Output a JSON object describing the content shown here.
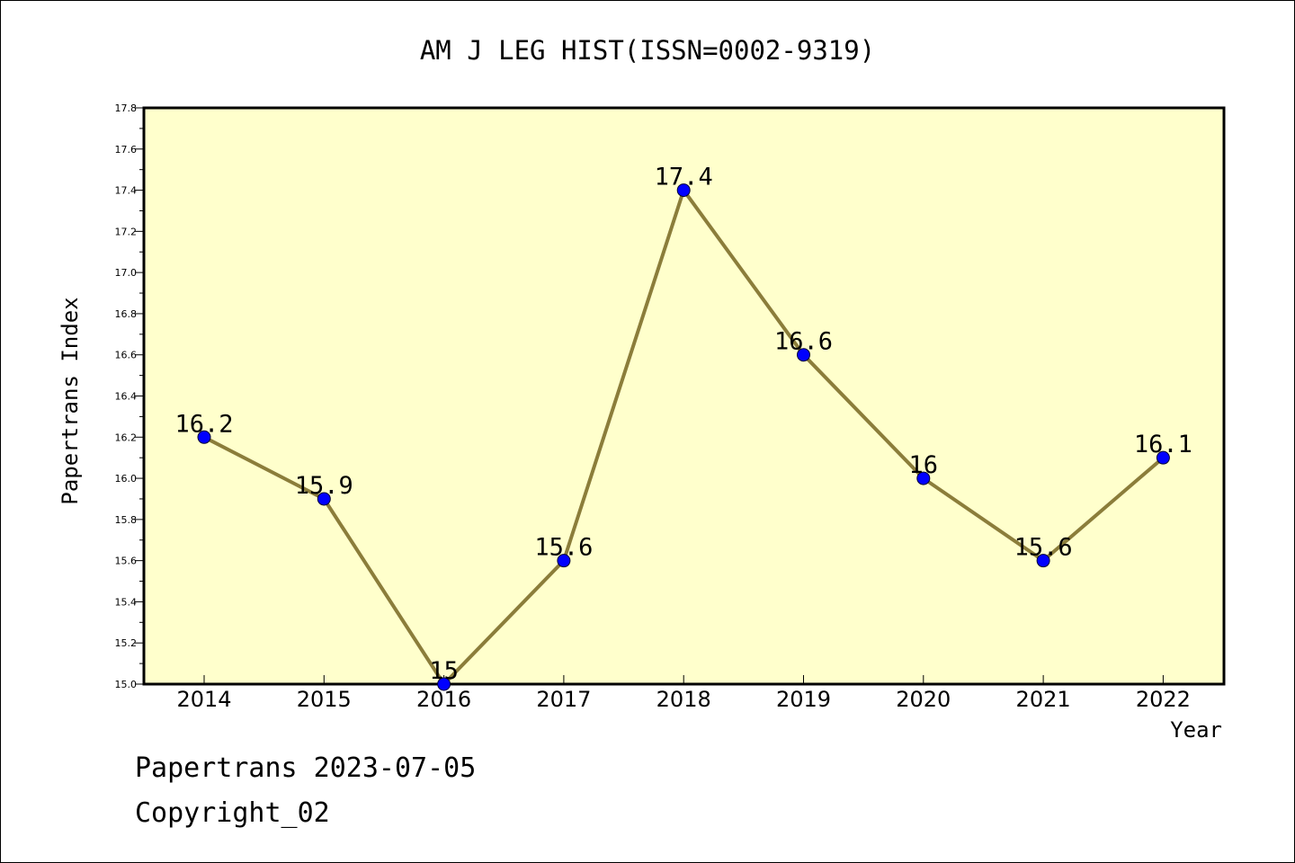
{
  "chart_data": {
    "type": "line",
    "title": "AM J LEG HIST(ISSN=0002-9319)",
    "xlabel": "Year",
    "ylabel": "Papertrans Index",
    "categories": [
      "2014",
      "2015",
      "2016",
      "2017",
      "2018",
      "2019",
      "2020",
      "2021",
      "2022"
    ],
    "values": [
      16.2,
      15.9,
      15.0,
      15.6,
      17.4,
      16.6,
      16.0,
      15.6,
      16.1
    ],
    "data_labels": [
      "16.2",
      "15.9",
      "15",
      "15.6",
      "17.4",
      "16.6",
      "16",
      "15.6",
      "16.1"
    ],
    "ylim": [
      15.0,
      17.8
    ],
    "yticks": [
      "15.0",
      "15.2",
      "15.4",
      "15.6",
      "15.8",
      "16.0",
      "16.2",
      "16.4",
      "16.6",
      "16.8",
      "17.0",
      "17.2",
      "17.4",
      "17.6",
      "17.8"
    ],
    "grid": false,
    "legend": "none",
    "colors": {
      "plot_background": "#ffffcc",
      "line": "#8b7d3a",
      "marker": "#0000ff"
    }
  },
  "footer": {
    "date_line": "Papertrans 2023-07-05",
    "copyright": "Copyright_02"
  }
}
